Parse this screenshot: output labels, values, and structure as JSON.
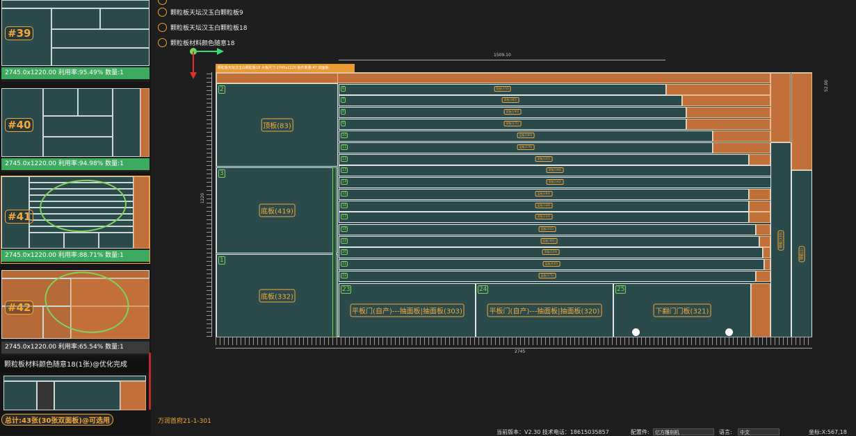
{
  "sheets": [
    {
      "num": "#39",
      "info": "2745.0x1220.00 利用率:95.49% 数量:1"
    },
    {
      "num": "#40",
      "info": "2745.0x1220.00 利用率:94.98% 数量:1"
    },
    {
      "num": "#41",
      "info": "2745.0x1220.00 利用率:88.71% 数量:1"
    },
    {
      "num": "#42",
      "info": "2745.0x1220.00 利用率:65.54% 数量:1"
    }
  ],
  "optimization_status": "颗粒板材料颜色随意18(1张)@优化完成",
  "total": "总计:43张(30张双面板)@可选用",
  "materials": [
    {
      "label": "颗粒板天坛汉玉白颗粒板9"
    },
    {
      "label": "颗粒板天坛汉玉白颗粒板18"
    },
    {
      "label": "颗粒板材料颜色随意18"
    }
  ],
  "board": {
    "header": "颗粒板天坛汉玉白颗粒板18 大板尺寸:2745x1220 板件数量:47 双面板:",
    "width_dim": "2745",
    "height_dim": "1220",
    "top_dim": "1509.10",
    "right_dim": "52.00",
    "panels": {
      "top": {
        "num": "2",
        "label": "顶板(83)"
      },
      "bottom": {
        "num": "3",
        "label": "底板(419)"
      },
      "base": {
        "num": "1",
        "label": "底板(332)"
      },
      "door1": {
        "num": "23",
        "label": "平板门(自产)---抽面板|抽面板(303)"
      },
      "door2": {
        "num": "24",
        "label": "平板门(自产)---抽面板|抽面板(320)"
      },
      "door3": {
        "num": "25",
        "label": "下翻门门板(321)"
      }
    },
    "strips": [
      {
        "num": "6",
        "label": "背板(374)"
      },
      {
        "num": "7",
        "label": "背板(385)"
      },
      {
        "num": "8",
        "label": "背板(190)"
      },
      {
        "num": "9",
        "label": "背板(171)"
      },
      {
        "num": "10",
        "label": "层板(160)"
      },
      {
        "num": "11",
        "label": "层板(176)"
      },
      {
        "num": "12",
        "label": "背板(325)"
      },
      {
        "num": "13",
        "label": "背板(346)"
      },
      {
        "num": "14",
        "label": "背板(342)"
      },
      {
        "num": "15",
        "label": "层板(264)"
      },
      {
        "num": "16",
        "label": "层板(328)"
      },
      {
        "num": "17",
        "label": "背板(224)"
      },
      {
        "num": "18",
        "label": "层板(331)"
      },
      {
        "num": "19",
        "label": "层板(381)"
      },
      {
        "num": "20",
        "label": "背板(129)"
      },
      {
        "num": "21",
        "label": "层板(420)"
      },
      {
        "num": "22",
        "label": "层板(171)"
      }
    ],
    "verticals": [
      {
        "label": "侧板(330)"
      },
      {
        "label": "侧板(2)"
      }
    ]
  },
  "project": "万润首府21-1-301",
  "status": {
    "version": "当前版本：V2.30 技术电话：18615035857",
    "machine_label": "配置件:",
    "machine_value": "亿方雕刻机",
    "lang_label": "语言:",
    "lang_value": "中文",
    "coord": "坐标:X:567,18"
  },
  "colors": {
    "accent": "#f4a83a",
    "panel": "#2b4a4c",
    "waste": "#c2703a",
    "ok": "#3cab5f"
  }
}
